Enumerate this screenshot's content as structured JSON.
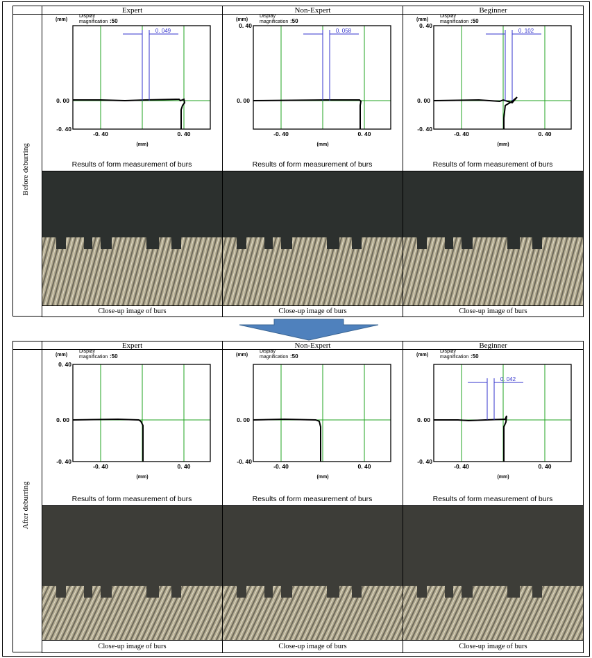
{
  "panels": [
    {
      "side_label": "Before deburring",
      "columns": [
        "Expert",
        "Non-Expert",
        "Beginner"
      ],
      "charts": [
        {
          "y_unit": "(mm)",
          "display": "Display",
          "magnification": "magnification",
          "mag_value": ":50",
          "y_mid": "0. 00",
          "y_bottom": "-0. 40",
          "x_left": "-0. 40",
          "x_right": "0. 40",
          "x_unit": "(mm)",
          "measure": "0. 049",
          "caption": "Results of form measurement of burs"
        },
        {
          "y_unit": "(mm)",
          "display": "Display",
          "magnification": "magnification",
          "mag_value": ":50",
          "y_top": "0. 40",
          "y_mid": "0. 00",
          "x_left": "-0. 40",
          "x_right": "0. 40",
          "x_unit": "(mm)",
          "measure": "0. 058",
          "caption": "Results of form measurement of burs"
        },
        {
          "y_unit": "(mm)",
          "display": "Display",
          "magnification": "magnification",
          "mag_value": ":50",
          "y_top": "0. 40",
          "y_mid": "0. 00",
          "y_bottom": "-0. 40",
          "x_left": "-0. 40",
          "x_right": "0. 40",
          "x_unit": "(mm)",
          "measure": "0. 102",
          "caption": "Results of form measurement of burs"
        }
      ],
      "photo_captions": [
        "Close-up image of burs",
        "Close-up image of burs",
        "Close-up image of burs"
      ]
    },
    {
      "side_label": "After deburring",
      "columns": [
        "Expert",
        "Non-Expert",
        "Beginner"
      ],
      "charts": [
        {
          "y_unit": "(mm)",
          "display": "Display",
          "magnification": "magnification",
          "mag_value": ":50",
          "y_top": "0. 40",
          "y_mid": "0. 00",
          "y_bottom": "-0. 40",
          "x_left": "-0. 40",
          "x_right": "0. 40",
          "x_unit": "(mm)",
          "caption": "Results of form measurement of burs"
        },
        {
          "y_unit": "(mm)",
          "display": "Display",
          "magnification": "magnification",
          "mag_value": ":50",
          "y_mid": "0. 00",
          "y_bottom": "-0. 40",
          "x_left": "-0. 40",
          "x_right": "0. 40",
          "x_unit": "(mm)",
          "caption": "Results of form measurement of burs"
        },
        {
          "y_unit": "(mm)",
          "display": "Display",
          "magnification": "magnification",
          "mag_value": ":50",
          "y_mid": "0. 00",
          "y_bottom": "-0. 40",
          "x_left": "-0. 40",
          "x_right": "0. 40",
          "x_unit": "(mm)",
          "measure": "0. 042",
          "caption": "Results of form measurement of burs"
        }
      ],
      "photo_captions": [
        "Close-up image of burs",
        "Close-up image of burs",
        "Close-up image of burs"
      ]
    }
  ]
}
